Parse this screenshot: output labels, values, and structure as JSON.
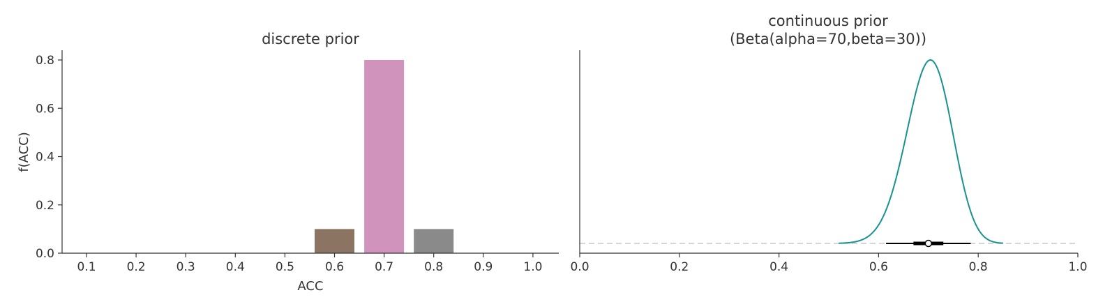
{
  "chart_data": [
    {
      "type": "bar",
      "title": "discrete prior",
      "xlabel": "ACC",
      "ylabel": "f(ACC)",
      "categories": [
        "0.1",
        "0.2",
        "0.3",
        "0.4",
        "0.5",
        "0.6",
        "0.7",
        "0.8",
        "0.9",
        "1.0"
      ],
      "values": [
        0,
        0,
        0,
        0,
        0,
        0.1,
        0.8,
        0.1,
        0,
        0
      ],
      "colors": [
        "#1f77b4",
        "#ff7f0e",
        "#2ca02c",
        "#d62728",
        "#9467bd",
        "#8c7462",
        "#d094bc",
        "#8a8a8a",
        "#bcbd22",
        "#17becf"
      ],
      "yticks": [
        "0.0",
        "0.2",
        "0.4",
        "0.6",
        "0.8"
      ],
      "ylim": [
        0,
        0.84
      ],
      "grid": false
    },
    {
      "type": "line",
      "title_line1": "continuous prior",
      "title_line2": "(Beta(alpha=70,beta=30))",
      "distribution": {
        "alpha": 70,
        "beta": 30
      },
      "x_range": [
        0.52,
        0.85
      ],
      "xticks": [
        "0.0",
        "0.2",
        "0.4",
        "0.6",
        "0.8",
        "1.0"
      ],
      "xlim": [
        0,
        1
      ],
      "line_color": "#17928f",
      "baseline_color": "#c8c8c8",
      "interval": {
        "point": 0.7,
        "inner": [
          0.67,
          0.73
        ],
        "outer": [
          0.615,
          0.785
        ]
      },
      "grid": false
    }
  ]
}
